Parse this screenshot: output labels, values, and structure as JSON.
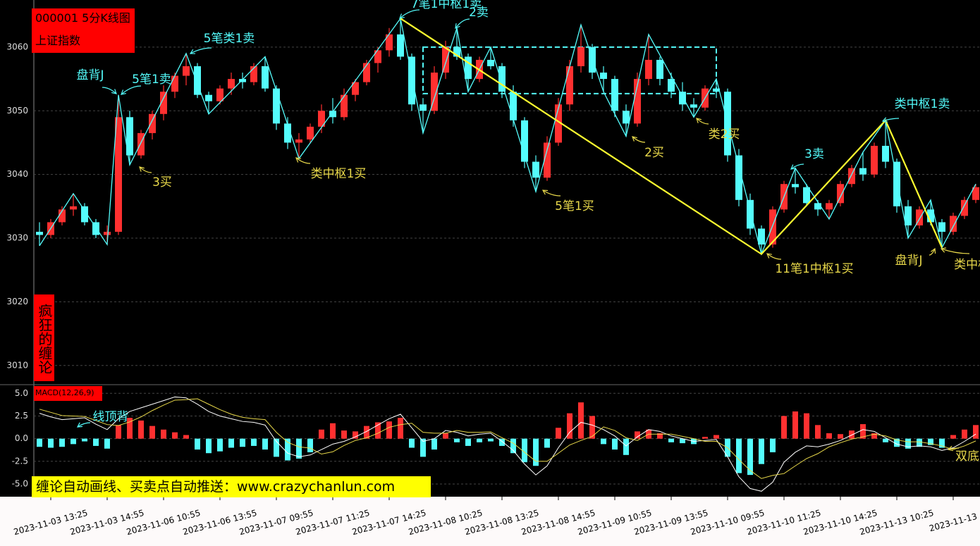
{
  "chart_data": {
    "type": "candlestick",
    "title": "000001 5分K线图",
    "subtitle": "上证指数",
    "side_text": "疯狂的缠论",
    "footer": "缠论自动画线、买卖点自动推送：www.crazychanlun.com",
    "x": [
      null,
      "2023-11-03 13:25",
      null,
      null,
      null,
      null,
      "2023-11-03 14:55",
      null,
      null,
      null,
      null,
      "2023-11-06 10:55",
      null,
      null,
      null,
      null,
      "2023-11-06 13:55",
      null,
      null,
      null,
      null,
      "2023-11-07 09:55",
      null,
      null,
      null,
      null,
      "2023-11-07 11:25",
      null,
      null,
      null,
      null,
      "2023-11-07 14:25",
      null,
      null,
      null,
      null,
      "2023-11-08 10:25",
      null,
      null,
      null,
      null,
      "2023-11-08 13:25",
      null,
      null,
      null,
      null,
      "2023-11-08 14:55",
      null,
      null,
      null,
      null,
      "2023-11-09 10:55",
      null,
      null,
      null,
      null,
      "2023-11-09 13:55",
      null,
      null,
      null,
      null,
      "2023-11-10 09:55",
      null,
      null,
      null,
      null,
      "2023-11-10 11:25",
      null,
      null,
      null,
      null,
      "2023-11-10 14:25",
      null,
      null,
      null,
      null,
      "2023-11-13 10:25",
      null,
      null,
      null,
      null,
      "2023-11-13",
      null,
      null
    ],
    "open": [
      3031,
      3030.5,
      3032.5,
      3034.5,
      3035,
      3032.5,
      3030.5,
      3031,
      3049,
      3043,
      3046.5,
      3049.5,
      3053,
      3055.5,
      3057,
      3052.5,
      3051.5,
      3053.5,
      3055,
      3054.5,
      3057,
      3053.5,
      3048,
      3045,
      3045.5,
      3047.5,
      3050,
      3049,
      3052.5,
      3054.5,
      3057.5,
      3059.5,
      3062,
      3058.5,
      3051,
      3050,
      3056,
      3060,
      3058.5,
      3055,
      3058,
      3057,
      3053,
      3048.5,
      3042,
      3039.5,
      3045,
      3051,
      3057,
      3060,
      3056,
      3055,
      3050,
      3048,
      3055,
      3058,
      3055,
      3053,
      3051,
      3050.5,
      3053.5,
      3053,
      3043,
      3036,
      3031.5,
      3029,
      3034.5,
      3038.5,
      3038,
      3035.5,
      3034.5,
      3035.5,
      3038.5,
      3041,
      3040,
      3044.5,
      3042,
      3035,
      3032,
      3034.5,
      3032.5,
      3031,
      3033.5,
      3036
    ],
    "high": [
      3032.5,
      3033,
      3035,
      3037,
      3035.5,
      3033,
      3032,
      3052.5,
      3050,
      3047,
      3050,
      3054,
      3056,
      3059,
      3057.5,
      3053,
      3054,
      3056,
      3056,
      3057.5,
      3058.5,
      3054,
      3049,
      3046.5,
      3048,
      3051,
      3052,
      3053.5,
      3055,
      3058,
      3060,
      3063,
      3064.5,
      3059,
      3052,
      3057,
      3061,
      3063,
      3059,
      3058.5,
      3060,
      3057.5,
      3054,
      3049,
      3043,
      3046,
      3052,
      3058,
      3063.5,
      3060.5,
      3057,
      3055.5,
      3051,
      3056,
      3062,
      3058.5,
      3056,
      3054.5,
      3052,
      3054,
      3055,
      3053.5,
      3044,
      3037,
      3032,
      3035,
      3039,
      3041,
      3038.5,
      3036,
      3036,
      3039,
      3041.5,
      3043.5,
      3045,
      3048.5,
      3042.5,
      3036,
      3035,
      3036,
      3033,
      3034,
      3036.5,
      3038.5
    ],
    "low": [
      3028.8,
      3030,
      3032,
      3033.5,
      3032,
      3030,
      3029,
      3030.5,
      3041.5,
      3042.5,
      3045.5,
      3048.5,
      3052,
      3054,
      3052,
      3049.5,
      3051,
      3052.5,
      3053.5,
      3054,
      3053,
      3047,
      3044,
      3042.5,
      3045,
      3046.5,
      3048,
      3048.5,
      3051.5,
      3054,
      3056,
      3058.5,
      3058,
      3050,
      3046.5,
      3049.5,
      3055,
      3058,
      3053,
      3054.5,
      3056.5,
      3052,
      3047.5,
      3041,
      3037.3,
      3039,
      3044.5,
      3050,
      3056,
      3055,
      3053,
      3049,
      3046,
      3047.5,
      3054,
      3054,
      3052,
      3050,
      3049,
      3050,
      3052,
      3042,
      3035,
      3030.5,
      3027.5,
      3028.5,
      3034,
      3037,
      3035,
      3033.5,
      3033,
      3035,
      3038,
      3039,
      3039.5,
      3041,
      3034,
      3030,
      3031.5,
      3032,
      3028.5,
      3030.5,
      3033,
      3035.5
    ],
    "close": [
      3030.5,
      3032.5,
      3034.5,
      3035,
      3032.5,
      3030.5,
      3031,
      3049,
      3043,
      3046.5,
      3049.5,
      3053,
      3055.5,
      3057,
      3052.5,
      3051.5,
      3053.5,
      3055,
      3054.5,
      3057,
      3053.5,
      3048,
      3045,
      3045.5,
      3047.5,
      3050,
      3049,
      3052.5,
      3054.5,
      3057.5,
      3059.5,
      3062,
      3058.5,
      3051,
      3050,
      3056,
      3060,
      3058.5,
      3055,
      3058,
      3057,
      3053,
      3048.5,
      3042,
      3039.5,
      3045,
      3051,
      3057,
      3060,
      3056,
      3055,
      3050,
      3048,
      3055,
      3058,
      3055,
      3053,
      3051,
      3050.5,
      3053.5,
      3053,
      3043,
      3036,
      3031.5,
      3029,
      3034.5,
      3038.5,
      3038,
      3035.5,
      3034.5,
      3035.5,
      3038.5,
      3041,
      3040,
      3044.5,
      3042,
      3035,
      3032,
      3034.5,
      3032.5,
      3031,
      3033.5,
      3036,
      3038
    ],
    "up_color": "#ff3030",
    "down_color": "#54fcfc",
    "ylim": [
      3007.1,
      3067.4
    ],
    "yticks": [
      3010,
      3020,
      3030,
      3040,
      3050,
      3060
    ],
    "grid": true,
    "bi": {
      "color": "#54fcfc",
      "x": [
        0,
        3,
        6,
        7,
        8,
        13,
        15,
        20,
        23,
        32,
        34,
        37,
        38,
        40,
        44,
        48,
        50,
        52,
        54,
        58,
        60,
        64,
        67,
        70,
        73,
        75,
        77,
        79,
        80,
        83
      ],
      "values": [
        3028.8,
        3037,
        3029,
        3052.5,
        3041.5,
        3059,
        3049.5,
        3058.5,
        3042.5,
        3064.5,
        3046.5,
        3063,
        3053,
        3060,
        3037.3,
        3063.5,
        3053,
        3046,
        3062,
        3049,
        3055,
        3027.5,
        3041,
        3033,
        3043.5,
        3048.5,
        3030,
        3036,
        3028.5,
        3038.5
      ]
    },
    "segments": {
      "color": "#ffff30",
      "x": [
        32,
        64,
        75,
        80
      ],
      "values": [
        3064.5,
        3027.5,
        3048.5,
        3028.5
      ]
    },
    "zhongshu": {
      "color": "#54fcfc",
      "start": 34,
      "end": 60,
      "high": 3060,
      "low": 3052.7
    },
    "annotations": [
      {
        "text": "盘背J",
        "color": "#54fcfc"
      },
      {
        "text": "5笔1卖",
        "color": "#54fcfc"
      },
      {
        "text": "5笔类1卖",
        "color": "#54fcfc"
      },
      {
        "text": "3买",
        "color": "#e8d84a"
      },
      {
        "text": "类中枢1买",
        "color": "#e8d84a"
      },
      {
        "text": "7笔1中枢1卖",
        "color": "#54fcfc"
      },
      {
        "text": "2卖",
        "color": "#54fcfc"
      },
      {
        "text": "5笔1买",
        "color": "#e8d84a"
      },
      {
        "text": "2买",
        "color": "#e8d84a"
      },
      {
        "text": "类2买",
        "color": "#e8d84a"
      },
      {
        "text": "11笔1中枢1买",
        "color": "#e8d84a"
      },
      {
        "text": "3卖",
        "color": "#54fcfc"
      },
      {
        "text": "类中枢1卖",
        "color": "#54fcfc"
      },
      {
        "text": "盘背J",
        "color": "#e8d84a"
      },
      {
        "text": "类中枢1买",
        "color": "#e8d84a"
      },
      {
        "text": "线顶背",
        "color": "#54fcfc"
      },
      {
        "text": "双底",
        "color": "#e8d84a"
      }
    ],
    "macd": {
      "title": "MACD(12,26,9)",
      "ylim": [
        -6.4,
        5.8
      ],
      "yticks": [
        {
          "value": 5,
          "label": "5.0"
        },
        2.5,
        {
          "value": 0,
          "label": "0.0"
        },
        -2.5,
        {
          "value": -5,
          "label": "-5.0"
        }
      ],
      "hist": [
        -0.9,
        -1.0,
        -0.9,
        -0.6,
        -0.3,
        -0.8,
        -1.1,
        1.5,
        2.3,
        2.0,
        1.4,
        1.0,
        0.7,
        0.4,
        -1.2,
        -1.6,
        -1.4,
        -1.0,
        -0.9,
        -0.8,
        -1.2,
        -2.0,
        -2.4,
        -2.2,
        -1.5,
        1.0,
        1.7,
        0.9,
        0.8,
        1.4,
        1.8,
        1.9,
        2.3,
        -1.0,
        -2.0,
        -1.2,
        0.6,
        -0.4,
        -0.8,
        -0.4,
        -0.3,
        -0.8,
        -1.6,
        -2.6,
        -3.0,
        -1.0,
        1.2,
        2.8,
        4.0,
        2.5,
        -0.6,
        -1.2,
        -1.8,
        0.8,
        1.0,
        0.6,
        -0.4,
        -0.5,
        -0.6,
        0.2,
        0.4,
        -2.0,
        -3.8,
        -4.0,
        -2.8,
        -1.5,
        2.5,
        3.0,
        2.8,
        1.5,
        0.6,
        0.5,
        0.9,
        1.6,
        0.6,
        -0.4,
        -0.9,
        -1.1,
        -0.9,
        -0.7,
        -1.0,
        0.4,
        1.0,
        1.5
      ],
      "dif": [
        2.8,
        2.4,
        2.1,
        2.2,
        2.3,
        1.6,
        1.0,
        2.2,
        3.0,
        3.4,
        3.8,
        4.2,
        4.6,
        4.5,
        3.8,
        3.0,
        2.5,
        2.2,
        1.9,
        1.8,
        1.5,
        -0.3,
        -1.6,
        -2.0,
        -1.8,
        -1.2,
        -0.6,
        -0.3,
        0.2,
        0.8,
        1.5,
        2.2,
        2.7,
        1.2,
        -0.3,
        0.0,
        0.9,
        0.7,
        0.3,
        0.5,
        0.6,
        -0.3,
        -1.3,
        -2.8,
        -4.0,
        -3.0,
        -1.0,
        0.7,
        1.8,
        1.5,
        1.0,
        0.3,
        -0.8,
        0.2,
        1.0,
        0.8,
        0.3,
        0.0,
        -0.3,
        -0.2,
        -0.1,
        -2.0,
        -4.2,
        -5.5,
        -5.8,
        -4.8,
        -2.6,
        -1.5,
        -0.8,
        -0.9,
        -0.6,
        -0.2,
        0.4,
        1.0,
        0.8,
        0.1,
        -0.6,
        -0.9,
        -0.8,
        -0.9,
        -1.3,
        -1.0,
        -0.3,
        0.5
      ],
      "dea": [
        3.25,
        2.9,
        2.55,
        2.5,
        2.45,
        2.0,
        1.55,
        1.45,
        1.85,
        2.4,
        3.1,
        3.7,
        4.25,
        4.3,
        4.4,
        3.8,
        3.2,
        2.7,
        2.35,
        2.2,
        2.1,
        0.7,
        -0.4,
        -0.9,
        -1.05,
        -1.7,
        -1.45,
        -0.75,
        -0.2,
        0.1,
        0.6,
        1.25,
        1.55,
        1.7,
        0.7,
        0.6,
        0.6,
        0.9,
        0.7,
        0.7,
        0.75,
        0.1,
        -0.5,
        -1.5,
        -2.5,
        -2.5,
        -1.6,
        -0.7,
        -0.2,
        0.25,
        1.3,
        0.9,
        0.1,
        -0.2,
        0.5,
        0.5,
        0.5,
        0.25,
        0.0,
        -0.3,
        -0.3,
        -1.0,
        -2.3,
        -3.5,
        -4.4,
        -4.05,
        -3.85,
        -3.0,
        -2.2,
        -1.65,
        -0.9,
        -0.45,
        -0.05,
        0.2,
        0.5,
        0.3,
        -0.15,
        -0.35,
        -0.35,
        -0.55,
        -0.8,
        -1.2,
        -0.8,
        -0.25
      ],
      "dif_color": "#ffffff",
      "dea_color": "#e8d84a",
      "up_color": "#ff3030",
      "down_color": "#54fcfc"
    }
  }
}
